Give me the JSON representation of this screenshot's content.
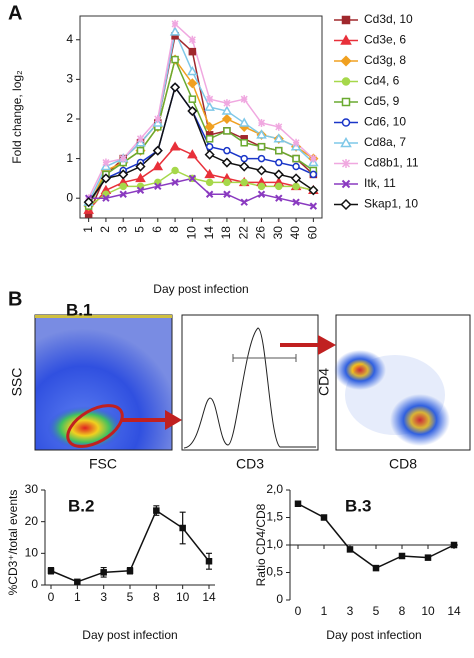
{
  "panel_letters": {
    "a": "A",
    "b": "B"
  },
  "flow_panel": {
    "title": "B.1",
    "plots": [
      {
        "x_label": "FSC",
        "y_label": "SSC"
      },
      {
        "x_label": "CD3"
      },
      {
        "x_label": "CD8",
        "y_label": "CD4"
      }
    ]
  },
  "chart_data": [
    {
      "type": "line",
      "y_label": "Fold change, log₂",
      "x_label": "Day post infection",
      "categories": [
        "1",
        "2",
        "3",
        "5",
        "6",
        "8",
        "10",
        "14",
        "18",
        "22",
        "26",
        "30",
        "40",
        "60"
      ],
      "ylim": [
        -0.5,
        4.6
      ],
      "yticks": [
        0,
        1,
        2,
        3,
        4
      ],
      "series": [
        {
          "name": "Cd3d, 10",
          "color": "#a0282d",
          "marker": "square",
          "values": [
            -0.4,
            0.6,
            1.0,
            1.4,
            1.9,
            4.1,
            3.7,
            1.6,
            1.7,
            1.5,
            1.3,
            1.2,
            1.0,
            0.6
          ]
        },
        {
          "name": "Cd3e, 6",
          "color": "#e8303a",
          "marker": "triangle",
          "values": [
            -0.3,
            0.2,
            0.4,
            0.5,
            0.8,
            1.3,
            1.1,
            0.6,
            0.5,
            0.4,
            0.4,
            0.4,
            0.3,
            0.2
          ]
        },
        {
          "name": "Cd3g, 8",
          "color": "#f0a020",
          "marker": "diamond",
          "values": [
            -0.2,
            0.7,
            0.9,
            1.2,
            1.8,
            3.5,
            2.9,
            1.8,
            2.0,
            1.8,
            1.6,
            1.5,
            1.3,
            1.0
          ]
        },
        {
          "name": "Cd4, 6",
          "color": "#a6d84a",
          "marker": "circle",
          "values": [
            -0.2,
            0.1,
            0.3,
            0.3,
            0.4,
            0.7,
            0.5,
            0.4,
            0.4,
            0.4,
            0.3,
            0.3,
            0.3,
            0.2
          ]
        },
        {
          "name": "Cd5, 9",
          "color": "#6aaa30",
          "marker": "open-square",
          "values": [
            -0.2,
            0.6,
            0.9,
            1.2,
            1.8,
            3.5,
            2.5,
            1.5,
            1.7,
            1.4,
            1.3,
            1.2,
            1.0,
            0.7
          ]
        },
        {
          "name": "Cd6, 10",
          "color": "#1a36c8",
          "marker": "open-circle",
          "values": [
            -0.1,
            0.5,
            0.7,
            0.9,
            1.2,
            2.8,
            2.2,
            1.3,
            1.2,
            1.0,
            1.0,
            0.9,
            0.8,
            0.6
          ]
        },
        {
          "name": "Cd8a, 7",
          "color": "#7fc8e8",
          "marker": "open-triangle",
          "values": [
            -0.1,
            0.8,
            1.0,
            1.4,
            1.9,
            4.2,
            3.2,
            2.3,
            2.2,
            1.9,
            1.6,
            1.5,
            1.3,
            0.9
          ]
        },
        {
          "name": "Cd8b1, 11",
          "color": "#f0a8e0",
          "marker": "star",
          "values": [
            0.0,
            0.9,
            1.0,
            1.5,
            2.0,
            4.4,
            4.0,
            2.5,
            2.4,
            2.5,
            1.9,
            1.8,
            1.4,
            1.0
          ]
        },
        {
          "name": "Itk, 11",
          "color": "#8a3ac0",
          "marker": "x",
          "values": [
            0.0,
            0.0,
            0.1,
            0.2,
            0.3,
            0.4,
            0.5,
            0.1,
            0.1,
            -0.1,
            0.1,
            0.0,
            -0.1,
            -0.2
          ]
        },
        {
          "name": "Skap1, 10",
          "color": "#111111",
          "marker": "open-diamond",
          "values": [
            -0.1,
            0.5,
            0.6,
            0.8,
            1.2,
            2.8,
            2.2,
            1.1,
            0.9,
            0.8,
            0.7,
            0.6,
            0.5,
            0.2
          ]
        }
      ]
    },
    {
      "type": "errorline",
      "title": "B.2",
      "y_label": "%CD3⁺/total events",
      "x_label": "Day post infection",
      "categories": [
        "0",
        "1",
        "3",
        "5",
        "8",
        "10",
        "14"
      ],
      "ylim": [
        0,
        30
      ],
      "yticks": [
        0,
        10,
        20,
        30
      ],
      "color": "#111111",
      "values": [
        4.5,
        1,
        4,
        4.5,
        23.5,
        18,
        7.5
      ],
      "errors": [
        1,
        0.5,
        1.5,
        1,
        1.5,
        5,
        2.5
      ]
    },
    {
      "type": "refline",
      "title": "B.3",
      "y_label": "Ratio CD4/CD8",
      "x_label": "Day post infection",
      "categories": [
        "0",
        "1",
        "3",
        "5",
        "8",
        "10",
        "14"
      ],
      "ylim": [
        0,
        2.0
      ],
      "yticks": [
        0,
        {
          "value": 0.5,
          "label": "0,5"
        },
        {
          "value": 1.0,
          "label": "1,0"
        },
        {
          "value": 1.5,
          "label": "1,5"
        },
        {
          "value": 2.0,
          "label": "2,0"
        }
      ],
      "hline": 1.0,
      "color": "#111111",
      "values": [
        1.75,
        1.5,
        0.92,
        0.58,
        0.8,
        0.77,
        1.0
      ]
    }
  ]
}
